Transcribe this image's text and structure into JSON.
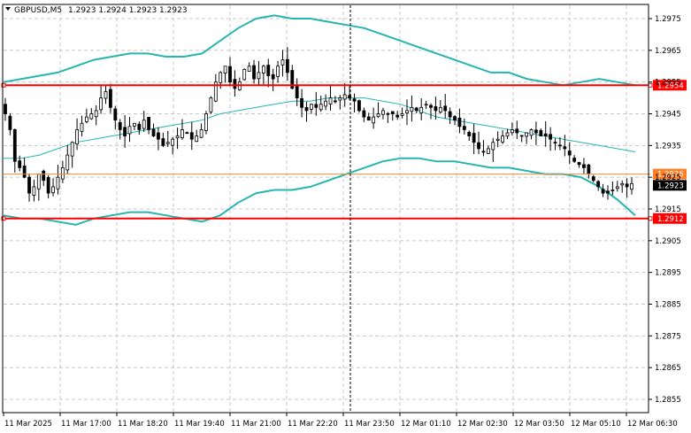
{
  "symbol": "GBPUSD,M5",
  "ohlc": "1.2923 1.2924 1.2923 1.2923",
  "colors": {
    "background": "#ffffff",
    "grid": "#c8c8c8",
    "band": "#26b5b0",
    "mid": "#26b5b0",
    "level": "#ff0000",
    "price_line": "#f08c3c",
    "bid_badge": "#000000",
    "price_badge": "#ff7f27"
  },
  "chart_data": {
    "type": "candlestick",
    "title": "GBPUSD,M5",
    "ylim": [
      1.285,
      1.298
    ],
    "y_ticks": [
      "1.2975",
      "1.2965",
      "1.2955",
      "1.2945",
      "1.2935",
      "1.2925",
      "1.2915",
      "1.2905",
      "1.2895",
      "1.2885",
      "1.2875",
      "1.2865",
      "1.2855"
    ],
    "y_tick_values": [
      1.2975,
      1.2965,
      1.2955,
      1.2945,
      1.2935,
      1.2925,
      1.2915,
      1.2905,
      1.2895,
      1.2885,
      1.2875,
      1.2865,
      1.2855
    ],
    "x_ticks": [
      "11 Mar 2025",
      "11 Mar 17:00",
      "11 Mar 18:20",
      "11 Mar 19:40",
      "11 Mar 21:00",
      "11 Mar 22:20",
      "11 Mar 23:50",
      "12 Mar 01:10",
      "12 Mar 02:30",
      "12 Mar 03:50",
      "12 Mar 05:10",
      "12 Mar 06:30"
    ],
    "levels": [
      {
        "value": 1.2954,
        "label": "1.2954",
        "style": "red-line"
      },
      {
        "value": 1.2926,
        "label": "1.2926",
        "style": "orange-line"
      },
      {
        "value": 1.2912,
        "label": "1.2912",
        "style": "red-line"
      }
    ],
    "current_price": {
      "value": 1.2923,
      "label": "1.2923"
    },
    "cursor_line_x_label": "11 Mar 23:50",
    "candles_close": [
      1.2945,
      1.294,
      1.293,
      1.2928,
      1.2925,
      1.292,
      1.2922,
      1.2926,
      1.2924,
      1.292,
      1.2922,
      1.2925,
      1.2928,
      1.2932,
      1.2936,
      1.294,
      1.2942,
      1.2944,
      1.2945,
      1.2946,
      1.295,
      1.2952,
      1.2947,
      1.2943,
      1.294,
      1.2938,
      1.2941,
      1.2942,
      1.294,
      1.2943,
      1.294,
      1.2938,
      1.2937,
      1.2935,
      1.2936,
      1.2937,
      1.2938,
      1.294,
      1.2939,
      1.2937,
      1.2938,
      1.294,
      1.2945,
      1.295,
      1.2955,
      1.2958,
      1.296,
      1.2955,
      1.2953,
      1.2955,
      1.2959,
      1.296,
      1.2956,
      1.2958,
      1.296,
      1.2957,
      1.2956,
      1.296,
      1.2962,
      1.2958,
      1.2953,
      1.295,
      1.2947,
      1.2946,
      1.2948,
      1.2947,
      1.2948,
      1.2949,
      1.295,
      1.2949,
      1.295,
      1.2951,
      1.295,
      1.2949,
      1.2946,
      1.2944,
      1.2943,
      1.2944,
      1.2945,
      1.2946,
      1.2945,
      1.2945,
      1.2944,
      1.2945,
      1.2946,
      1.2947,
      1.2946,
      1.2947,
      1.2948,
      1.2947,
      1.2946,
      1.2947,
      1.2946,
      1.2944,
      1.2943,
      1.2941,
      1.294,
      1.2938,
      1.2936,
      1.2934,
      1.2933,
      1.2934,
      1.2936,
      1.2937,
      1.2938,
      1.2939,
      1.294,
      1.2939,
      1.2938,
      1.2939,
      1.294,
      1.2939,
      1.2938,
      1.2938,
      1.2937,
      1.2936,
      1.2935,
      1.2934,
      1.2932,
      1.293,
      1.2929,
      1.2928,
      1.2926,
      1.2924,
      1.2922,
      1.292,
      1.292,
      1.2921,
      1.2922,
      1.2923,
      1.2922,
      1.2923
    ],
    "band_upper": [
      1.2955,
      1.2956,
      1.2957,
      1.2958,
      1.296,
      1.2962,
      1.2963,
      1.2964,
      1.2964,
      1.2963,
      1.2963,
      1.2964,
      1.2968,
      1.2972,
      1.2975,
      1.2976,
      1.2975,
      1.2975,
      1.2974,
      1.2973,
      1.2972,
      1.297,
      1.2968,
      1.2966,
      1.2964,
      1.2962,
      1.296,
      1.2958,
      1.2958,
      1.2956,
      1.2955,
      1.2954,
      1.2955,
      1.2956,
      1.2955,
      1.2954
    ],
    "band_mid": [
      1.2931,
      1.2931,
      1.2932,
      1.2934,
      1.2936,
      1.2937,
      1.2938,
      1.2939,
      1.294,
      1.2941,
      1.2942,
      1.2943,
      1.2945,
      1.2946,
      1.2947,
      1.2948,
      1.2949,
      1.2949,
      1.295,
      1.295,
      1.295,
      1.2949,
      1.2948,
      1.2946,
      1.2944,
      1.2943,
      1.2942,
      1.2941,
      1.294,
      1.2939,
      1.2938,
      1.2937,
      1.2936,
      1.2935,
      1.2934,
      1.2933
    ],
    "band_lower": [
      1.2913,
      1.2912,
      1.2912,
      1.2911,
      1.291,
      1.2912,
      1.2913,
      1.2914,
      1.2914,
      1.2913,
      1.2912,
      1.2911,
      1.2913,
      1.2917,
      1.292,
      1.2921,
      1.2921,
      1.2922,
      1.2924,
      1.2926,
      1.2928,
      1.293,
      1.2931,
      1.2931,
      1.293,
      1.293,
      1.2929,
      1.2928,
      1.2928,
      1.2927,
      1.2926,
      1.2926,
      1.2925,
      1.2922,
      1.2918,
      1.2913
    ]
  }
}
